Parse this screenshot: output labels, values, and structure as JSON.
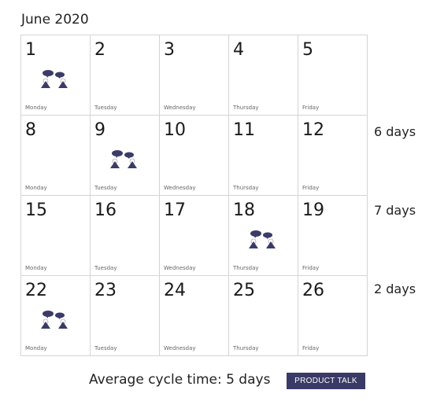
{
  "title": "June 2020",
  "weekdays": [
    "Monday",
    "Tuesday",
    "Wednesday",
    "Thursday",
    "Friday"
  ],
  "weeks": [
    {
      "days": [
        "1",
        "2",
        "3",
        "4",
        "5"
      ],
      "duration": ""
    },
    {
      "days": [
        "8",
        "9",
        "10",
        "11",
        "12"
      ],
      "duration": "6 days"
    },
    {
      "days": [
        "15",
        "16",
        "17",
        "18",
        "19"
      ],
      "duration": "7 days"
    },
    {
      "days": [
        "22",
        "23",
        "24",
        "25",
        "26"
      ],
      "duration": "2 days"
    }
  ],
  "meeting_days": [
    "1",
    "9",
    "18",
    "22"
  ],
  "meeting_icon": "two-people-talking-icon",
  "average": "Average cycle time: 5 days",
  "button_label": "PRODUCT TALK",
  "colors": {
    "accent": "#3a3a66",
    "icon": "#3b3b68",
    "grid": "#d4d4d4"
  }
}
